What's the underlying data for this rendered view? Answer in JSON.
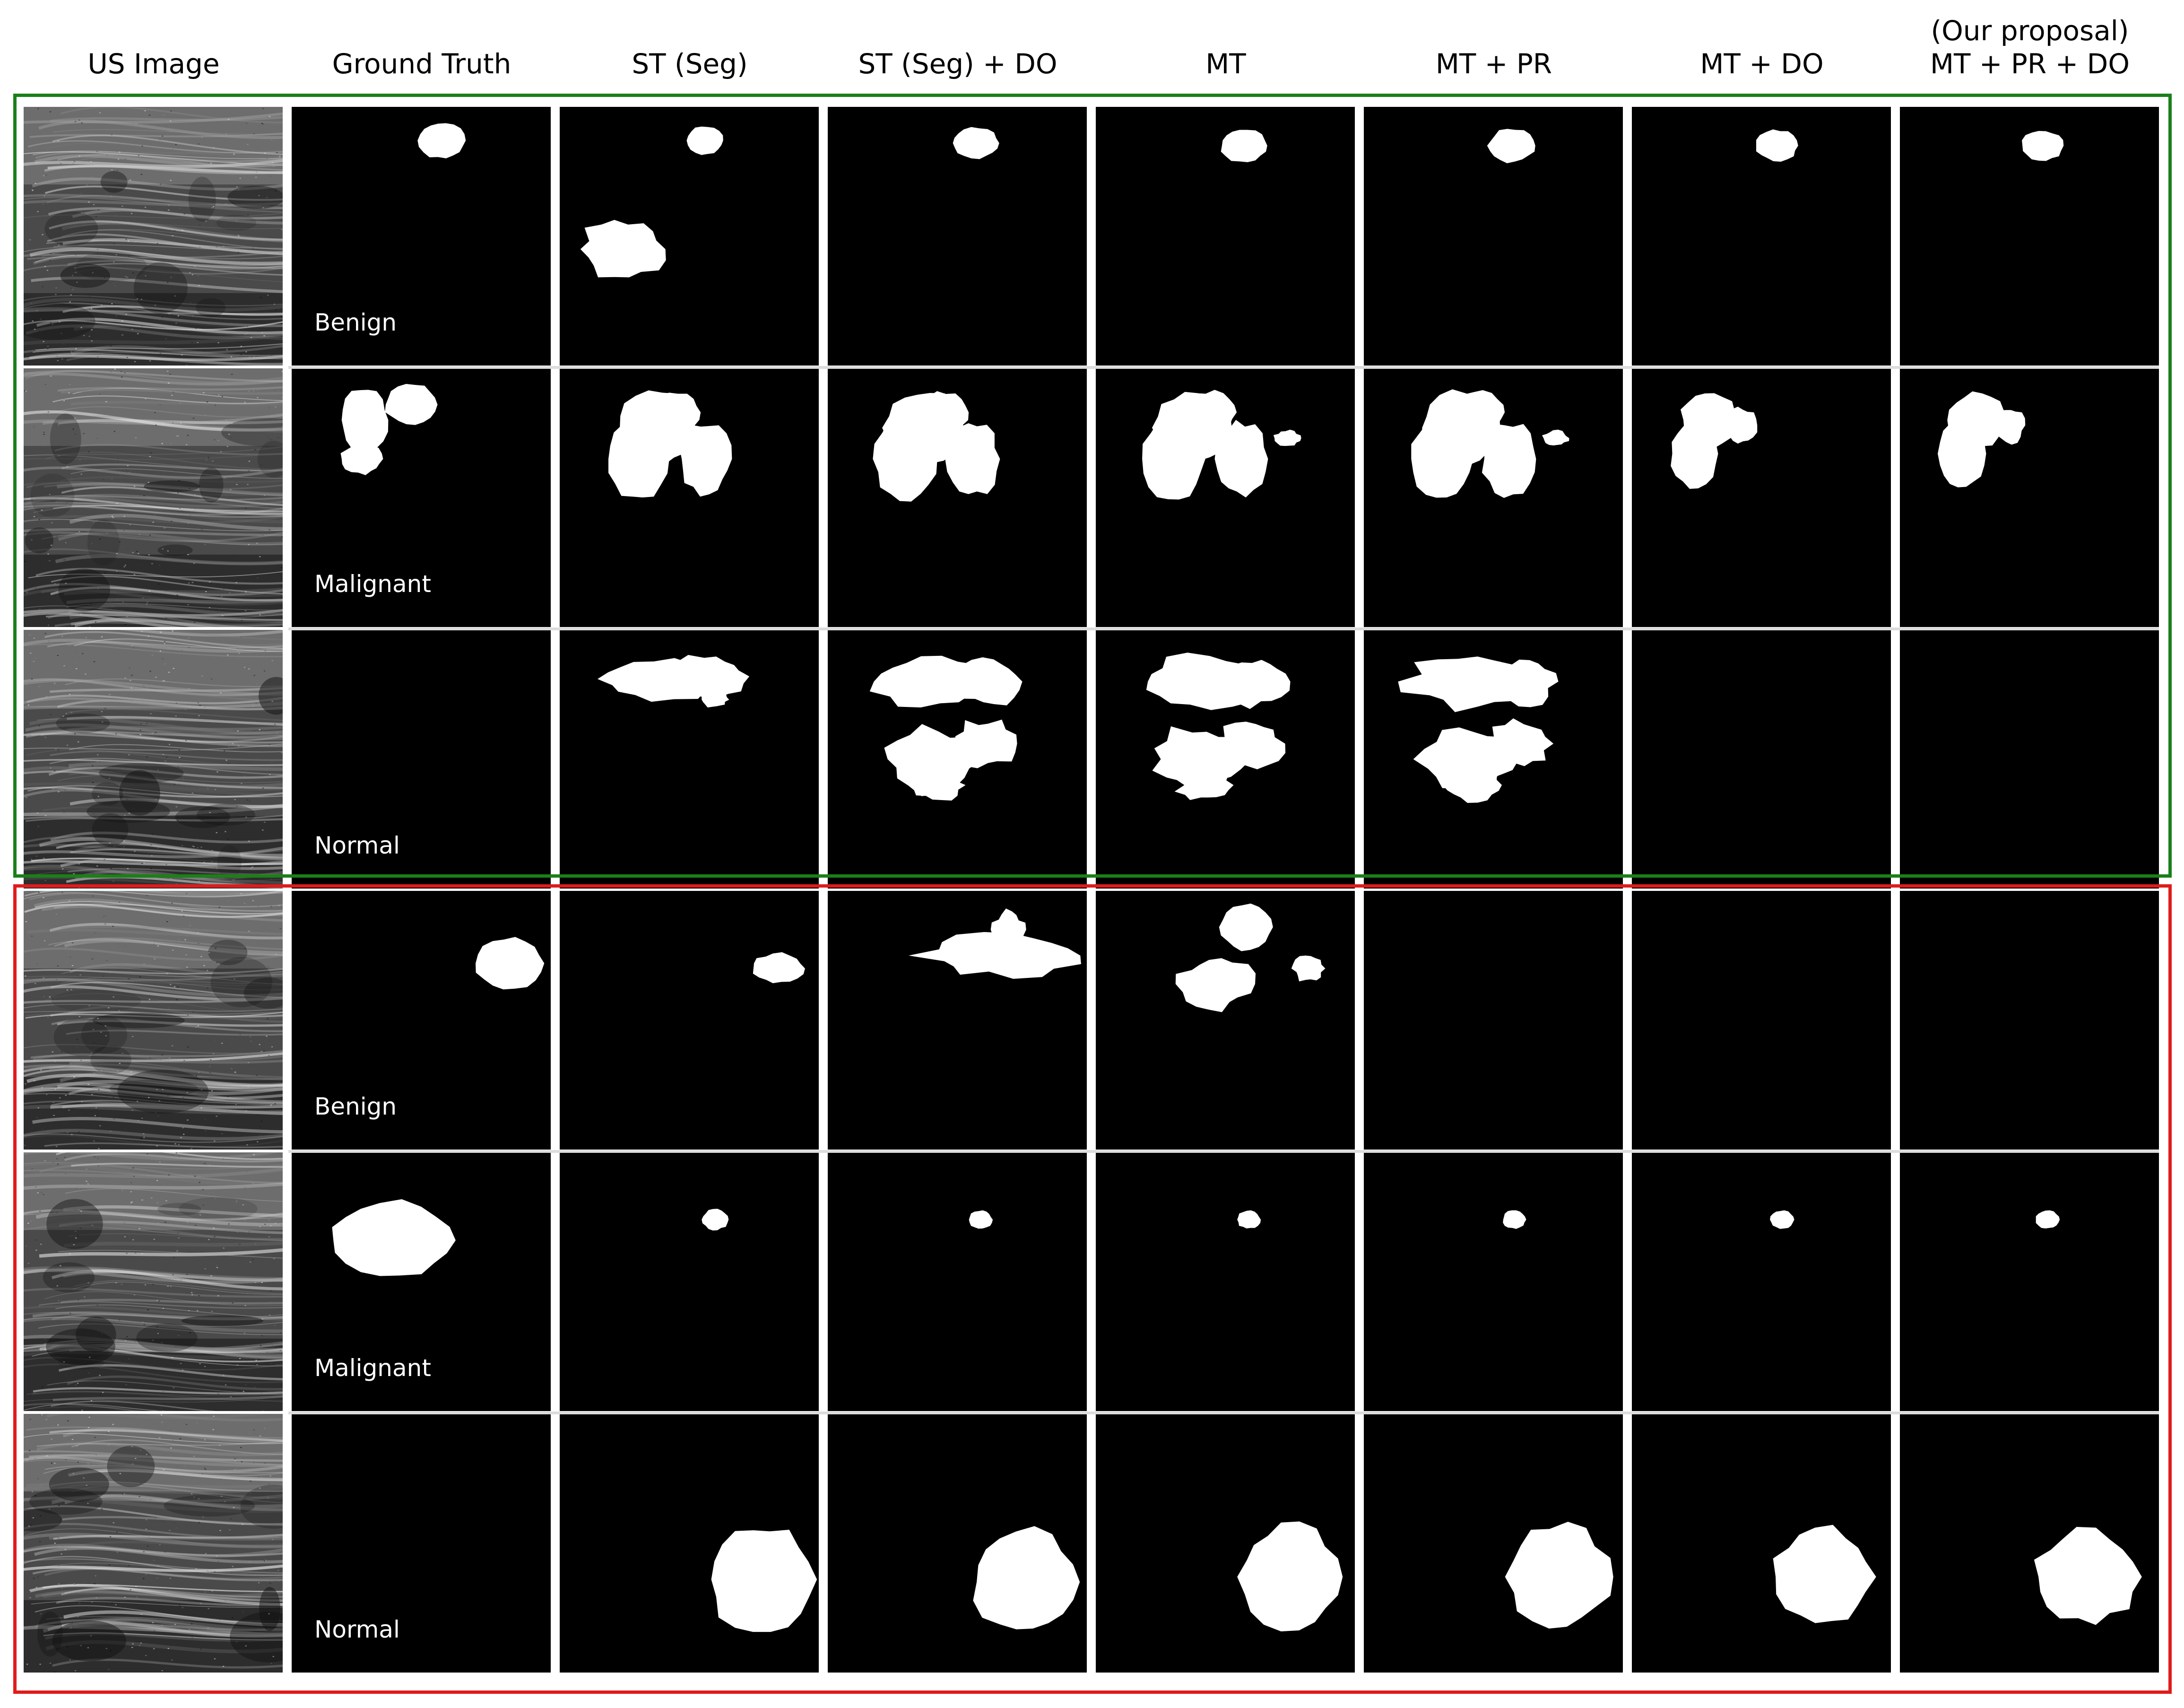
{
  "columns": [
    {
      "id": "us-image",
      "label": "US Image"
    },
    {
      "id": "ground-truth",
      "label": "Ground Truth"
    },
    {
      "id": "st-seg",
      "label": "ST (Seg)"
    },
    {
      "id": "st-seg-do",
      "label": "ST (Seg) + DO"
    },
    {
      "id": "mt",
      "label": "MT"
    },
    {
      "id": "mt-pr",
      "label": "MT + PR"
    },
    {
      "id": "mt-do",
      "label": "MT + DO"
    },
    {
      "id": "mt-pr-do",
      "label": "MT + PR + DO",
      "note": "(Our proposal)"
    }
  ],
  "groups": [
    {
      "id": "success-cases",
      "frame_color": "#1a7f1a",
      "rows": [
        {
          "class_label": "Benign"
        },
        {
          "class_label": "Malignant"
        },
        {
          "class_label": "Normal"
        }
      ]
    },
    {
      "id": "failure-cases",
      "frame_color": "#e01b1b",
      "rows": [
        {
          "class_label": "Benign"
        },
        {
          "class_label": "Malignant"
        },
        {
          "class_label": "Normal"
        }
      ]
    }
  ],
  "colors": {
    "mask_background": "#000000",
    "mask_foreground": "#ffffff",
    "separator": "#dcdcdc"
  }
}
